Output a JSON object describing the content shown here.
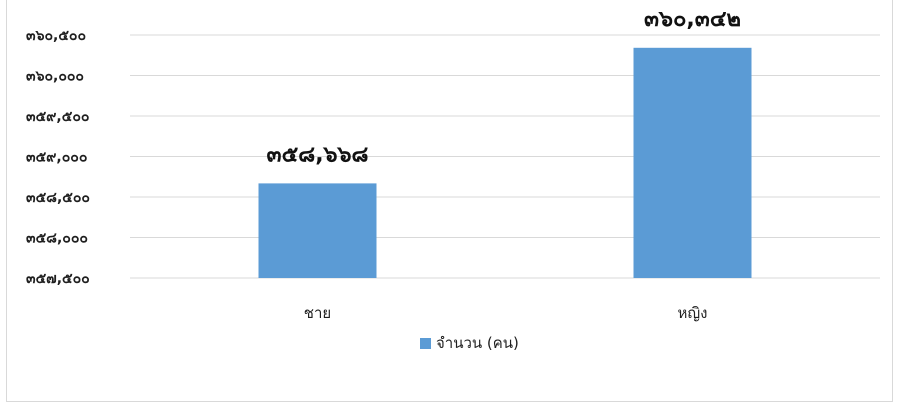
{
  "chart_data": {
    "type": "bar",
    "title": "",
    "xlabel": "",
    "ylabel": "",
    "categories": [
      "ชาย",
      "หญิง"
    ],
    "series": [
      {
        "name": "จำนวน (คน)",
        "values": [
          358668,
          360342
        ],
        "data_labels": [
          "๓๕๘,๖๖๘",
          "๓๖๐,๓๔๒"
        ]
      }
    ],
    "ylim": [
      357500,
      360500
    ],
    "yticks": [
      357500,
      358000,
      358500,
      359000,
      359500,
      360000,
      360500
    ],
    "ytick_labels": [
      "๓๕๗,๕๐๐",
      "๓๕๘,๐๐๐",
      "๓๕๘,๕๐๐",
      "๓๕๙,๐๐๐",
      "๓๕๙,๕๐๐",
      "๓๖๐,๐๐๐",
      "๓๖๐,๕๐๐"
    ],
    "grid": true,
    "legend_position": "bottom",
    "colors": {
      "bar": "#5b9bd5",
      "grid": "#d9d9d9"
    }
  }
}
